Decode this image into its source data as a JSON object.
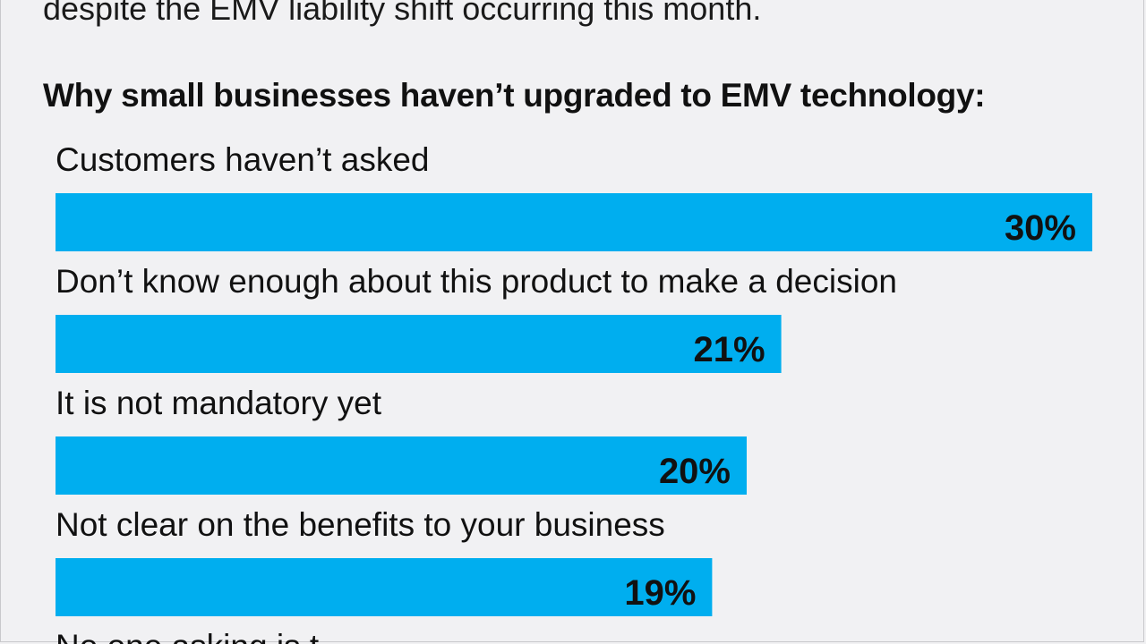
{
  "intro_text": "despite the EMV liability shift occurring this month.",
  "chart_data": {
    "type": "bar",
    "orientation": "horizontal",
    "title": "Why small businesses haven’t upgraded to EMV technology:",
    "categories": [
      "Customers haven’t asked",
      "Don’t know enough about this product to make a decision",
      "It is not mandatory yet",
      "Not clear on the benefits to your business",
      "No one asking is t…"
    ],
    "values": [
      30,
      21,
      20,
      19,
      null
    ],
    "value_labels": [
      "30%",
      "21%",
      "20%",
      "19%",
      ""
    ],
    "unit": "%",
    "xlim": [
      0,
      30
    ],
    "grid": false,
    "legend": "none",
    "colors": {
      "bar": "#00aeef",
      "text": "#111111",
      "background": "#f1f1f3"
    }
  }
}
